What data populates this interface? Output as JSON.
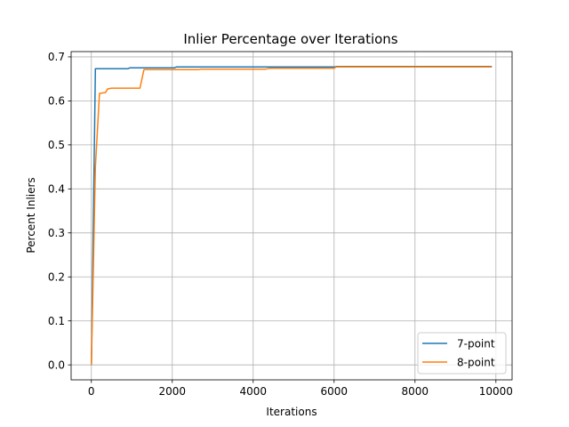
{
  "chart_data": {
    "type": "line",
    "title": "Inlier Percentage over Iterations",
    "xlabel": "Iterations",
    "ylabel": "Percent Inliers",
    "xlim": [
      -500,
      10400
    ],
    "ylim": [
      -0.034,
      0.712
    ],
    "xticks": [
      0,
      2000,
      4000,
      6000,
      8000,
      10000
    ],
    "xtick_labels": [
      "0",
      "2000",
      "4000",
      "6000",
      "8000",
      "10000"
    ],
    "yticks": [
      0.0,
      0.1,
      0.2,
      0.3,
      0.4,
      0.5,
      0.6,
      0.7
    ],
    "ytick_labels": [
      "0.0",
      "0.1",
      "0.2",
      "0.3",
      "0.4",
      "0.5",
      "0.6",
      "0.7"
    ],
    "grid": true,
    "legend_position": "bottom-right",
    "series": [
      {
        "name": "7-point",
        "color": "#1f77b4",
        "x": [
          0,
          100,
          900,
          950,
          2050,
          2100,
          6000,
          6050,
          9900
        ],
        "y": [
          0.0,
          0.673,
          0.673,
          0.675,
          0.675,
          0.677,
          0.677,
          0.678,
          0.678
        ]
      },
      {
        "name": "8-point",
        "color": "#ff7f0e",
        "x": [
          0,
          100,
          200,
          350,
          400,
          500,
          1200,
          1300,
          2650,
          2700,
          4300,
          4400,
          6000,
          6050,
          9900
        ],
        "y": [
          0.0,
          0.45,
          0.617,
          0.619,
          0.627,
          0.629,
          0.629,
          0.671,
          0.671,
          0.672,
          0.672,
          0.674,
          0.674,
          0.677,
          0.677
        ]
      }
    ]
  }
}
